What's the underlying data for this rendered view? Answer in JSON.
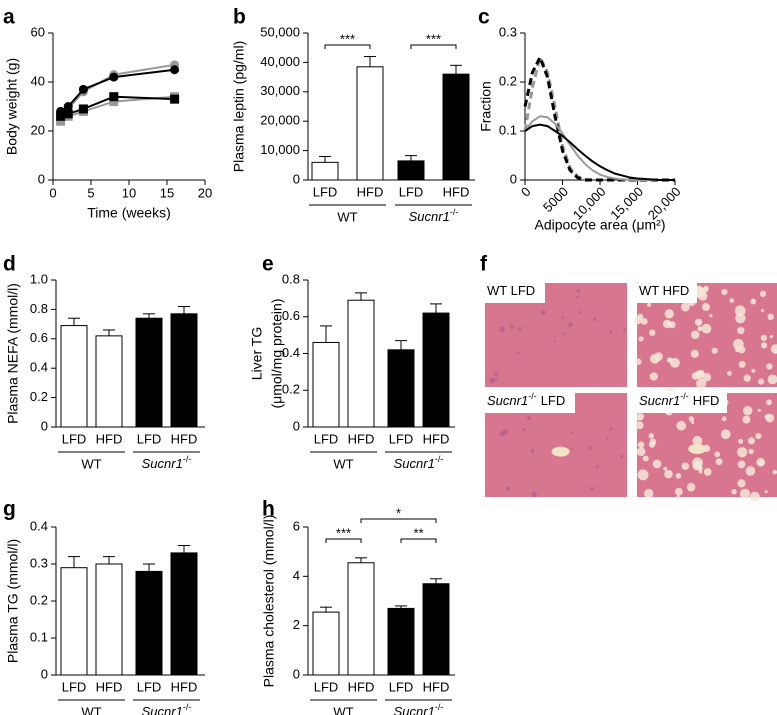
{
  "chart_data": [
    {
      "type": "line",
      "panel": "a",
      "xlabel": "Time (weeks)",
      "ylabel": "Body weight (g)",
      "xlim": [
        0,
        20
      ],
      "ylim": [
        0,
        60
      ],
      "xticks": [
        0,
        5,
        10,
        15,
        20
      ],
      "yticks": [
        0,
        20,
        40,
        60
      ],
      "x": [
        1,
        2,
        4,
        8,
        16
      ],
      "series": [
        {
          "color": "#999999",
          "marker": "circle",
          "values": [
            26,
            29,
            36,
            43,
            47
          ]
        },
        {
          "color": "#000000",
          "marker": "circle",
          "values": [
            28,
            30,
            37,
            42,
            45
          ]
        },
        {
          "color": "#999999",
          "marker": "square",
          "values": [
            24,
            26,
            28,
            32,
            34
          ]
        },
        {
          "color": "#000000",
          "marker": "square",
          "values": [
            26,
            27,
            29,
            34,
            33
          ]
        }
      ]
    },
    {
      "type": "bar",
      "panel": "b",
      "ylabel": "Plasma leptin (pg/ml)",
      "ylim": [
        0,
        50000
      ],
      "yticks": [
        0,
        {
          "value": 10000,
          "label": "10,000"
        },
        {
          "value": 20000,
          "label": "20,000"
        },
        {
          "value": 30000,
          "label": "30,000"
        },
        {
          "value": 40000,
          "label": "40,000"
        },
        {
          "value": 50000,
          "label": "50,000"
        }
      ],
      "categories": [
        "LFD",
        "HFD",
        "LFD",
        "HFD"
      ],
      "groups": [
        "WT",
        [
          {
            "text": "Sucnr1",
            "italic": true
          },
          {
            "text": "-/-",
            "sup": true
          }
        ]
      ],
      "values": [
        6000,
        38500,
        6500,
        36000
      ],
      "errors": [
        2000,
        3500,
        1800,
        3000
      ],
      "colors": [
        "#ffffff",
        "#ffffff",
        "#000000",
        "#000000"
      ],
      "significance": [
        {
          "between": [
            0,
            1
          ],
          "label": "***"
        },
        {
          "between": [
            2,
            3
          ],
          "label": "***"
        }
      ]
    },
    {
      "type": "line",
      "panel": "c",
      "xlabel": "Adipocyte area (μm²)",
      "ylabel": "Fraction",
      "xlim": [
        0,
        20000
      ],
      "ylim": [
        0,
        0.3
      ],
      "xticks": [
        0,
        5000,
        {
          "value": 10000,
          "label": "10,000"
        },
        {
          "value": 15000,
          "label": "15,000"
        },
        {
          "value": 20000,
          "label": "20,000"
        }
      ],
      "yticks": [
        0,
        0.1,
        0.2,
        0.3
      ],
      "x": [
        0,
        1000,
        2000,
        3000,
        4000,
        5000,
        6000,
        7000,
        8000,
        9000,
        10000,
        11000,
        12000,
        13000,
        14000,
        15000,
        16000,
        17000,
        18000,
        19000,
        20000
      ],
      "series": [
        {
          "color": "#999999",
          "dash": true,
          "values": [
            0.1,
            0.19,
            0.25,
            0.22,
            0.15,
            0.07,
            0.025,
            0.007,
            0.001,
            0,
            0,
            0,
            0,
            0,
            0,
            0,
            0,
            0,
            0,
            0,
            0
          ]
        },
        {
          "color": "#000000",
          "dash": true,
          "values": [
            0.15,
            0.22,
            0.25,
            0.21,
            0.13,
            0.06,
            0.02,
            0.005,
            0,
            0,
            0,
            0,
            0,
            0,
            0,
            0,
            0,
            0,
            0,
            0,
            0
          ]
        },
        {
          "color": "#999999",
          "values": [
            0.1,
            0.12,
            0.13,
            0.128,
            0.115,
            0.095,
            0.072,
            0.05,
            0.033,
            0.02,
            0.011,
            0.006,
            0.003,
            0.001,
            0,
            0,
            0,
            0,
            0,
            0,
            0
          ]
        },
        {
          "color": "#000000",
          "values": [
            0.1,
            0.11,
            0.113,
            0.11,
            0.1,
            0.09,
            0.077,
            0.063,
            0.05,
            0.038,
            0.028,
            0.02,
            0.013,
            0.009,
            0.005,
            0.003,
            0.002,
            0.001,
            0,
            0,
            0
          ]
        }
      ]
    },
    {
      "type": "bar",
      "panel": "d",
      "ylabel": "Plasma NEFA (mmol/l)",
      "ylim": [
        0,
        1
      ],
      "yticks": [
        0,
        0.2,
        0.4,
        0.6,
        0.8,
        {
          "value": 1,
          "label": "1.0"
        }
      ],
      "categories": [
        "LFD",
        "HFD",
        "LFD",
        "HFD"
      ],
      "groups": [
        "WT",
        [
          {
            "text": "Sucnr1",
            "italic": true
          },
          {
            "text": "-/-",
            "sup": true
          }
        ]
      ],
      "values": [
        0.69,
        0.62,
        0.74,
        0.77
      ],
      "errors": [
        0.05,
        0.04,
        0.03,
        0.05
      ],
      "colors": [
        "#ffffff",
        "#ffffff",
        "#000000",
        "#000000"
      ]
    },
    {
      "type": "bar",
      "panel": "e",
      "ylabel": [
        "Liver TG",
        "(μmol/mg protein)"
      ],
      "ylim": [
        0,
        0.8
      ],
      "yticks": [
        0,
        0.2,
        0.4,
        0.6,
        0.8
      ],
      "categories": [
        "LFD",
        "HFD",
        "LFD",
        "HFD"
      ],
      "groups": [
        "WT",
        [
          {
            "text": "Sucnr1",
            "italic": true
          },
          {
            "text": "-/-",
            "sup": true
          }
        ]
      ],
      "values": [
        0.46,
        0.69,
        0.42,
        0.62
      ],
      "errors": [
        0.09,
        0.04,
        0.05,
        0.05
      ],
      "colors": [
        "#ffffff",
        "#ffffff",
        "#000000",
        "#000000"
      ]
    },
    {
      "type": "bar",
      "panel": "g",
      "ylabel": "Plasma TG (mmol/l)",
      "ylim": [
        0,
        0.4
      ],
      "yticks": [
        0,
        0.1,
        0.2,
        0.3,
        0.4
      ],
      "categories": [
        "LFD",
        "HFD",
        "LFD",
        "HFD"
      ],
      "groups": [
        "WT",
        [
          {
            "text": "Sucnr1",
            "italic": true
          },
          {
            "text": "-/-",
            "sup": true
          }
        ]
      ],
      "values": [
        0.29,
        0.3,
        0.28,
        0.33
      ],
      "errors": [
        0.03,
        0.02,
        0.02,
        0.02
      ],
      "colors": [
        "#ffffff",
        "#ffffff",
        "#000000",
        "#000000"
      ]
    },
    {
      "type": "bar",
      "panel": "h",
      "ylabel": "Plasma cholesterol (mmol/l)",
      "ylim": [
        0,
        6
      ],
      "yticks": [
        0,
        2,
        4,
        6
      ],
      "categories": [
        "LFD",
        "HFD",
        "LFD",
        "HFD"
      ],
      "groups": [
        "WT",
        [
          {
            "text": "Sucnr1",
            "italic": true
          },
          {
            "text": "-/-",
            "sup": true
          }
        ]
      ],
      "values": [
        2.55,
        4.55,
        2.7,
        3.7
      ],
      "errors": [
        0.2,
        0.2,
        0.1,
        0.2
      ],
      "colors": [
        "#ffffff",
        "#ffffff",
        "#000000",
        "#000000"
      ],
      "significance": [
        {
          "between": [
            0,
            1
          ],
          "label": "***"
        },
        {
          "between": [
            2,
            3
          ],
          "label": "**"
        },
        {
          "between": [
            1,
            3
          ],
          "label": "*"
        }
      ]
    }
  ],
  "images": {
    "panel": "f",
    "tiles": [
      [
        {
          "text": "WT LFD"
        }
      ],
      [
        {
          "text": "WT HFD"
        }
      ],
      [
        {
          "text": "Sucnr1",
          "italic": true
        },
        {
          "text": "-/-",
          "sup": true
        },
        {
          "text": "LFD"
        }
      ],
      [
        {
          "text": "Sucnr1",
          "italic": true
        },
        {
          "text": "-/-",
          "sup": true
        },
        {
          "text": "HFD"
        }
      ]
    ]
  }
}
